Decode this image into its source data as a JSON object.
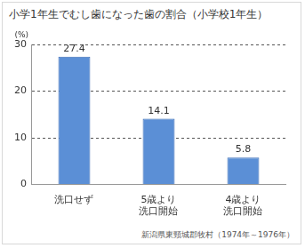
{
  "chart_data": {
    "type": "bar",
    "title": "小学1年生でむし歯になった歯の割合（小学校1年生）",
    "ylabel": "(%)",
    "categories": [
      "洗口せず",
      "5歳より\n洗口開始",
      "4歳より\n洗口開始"
    ],
    "values": [
      27.4,
      14.1,
      5.8
    ],
    "color": "#5b8fd6",
    "ylim": [
      0,
      30
    ],
    "yticks": [
      0,
      10,
      20,
      30
    ],
    "grid": true,
    "data_labels": true,
    "source": "新潟県東頸城郡牧村（1974年～1976年）"
  }
}
